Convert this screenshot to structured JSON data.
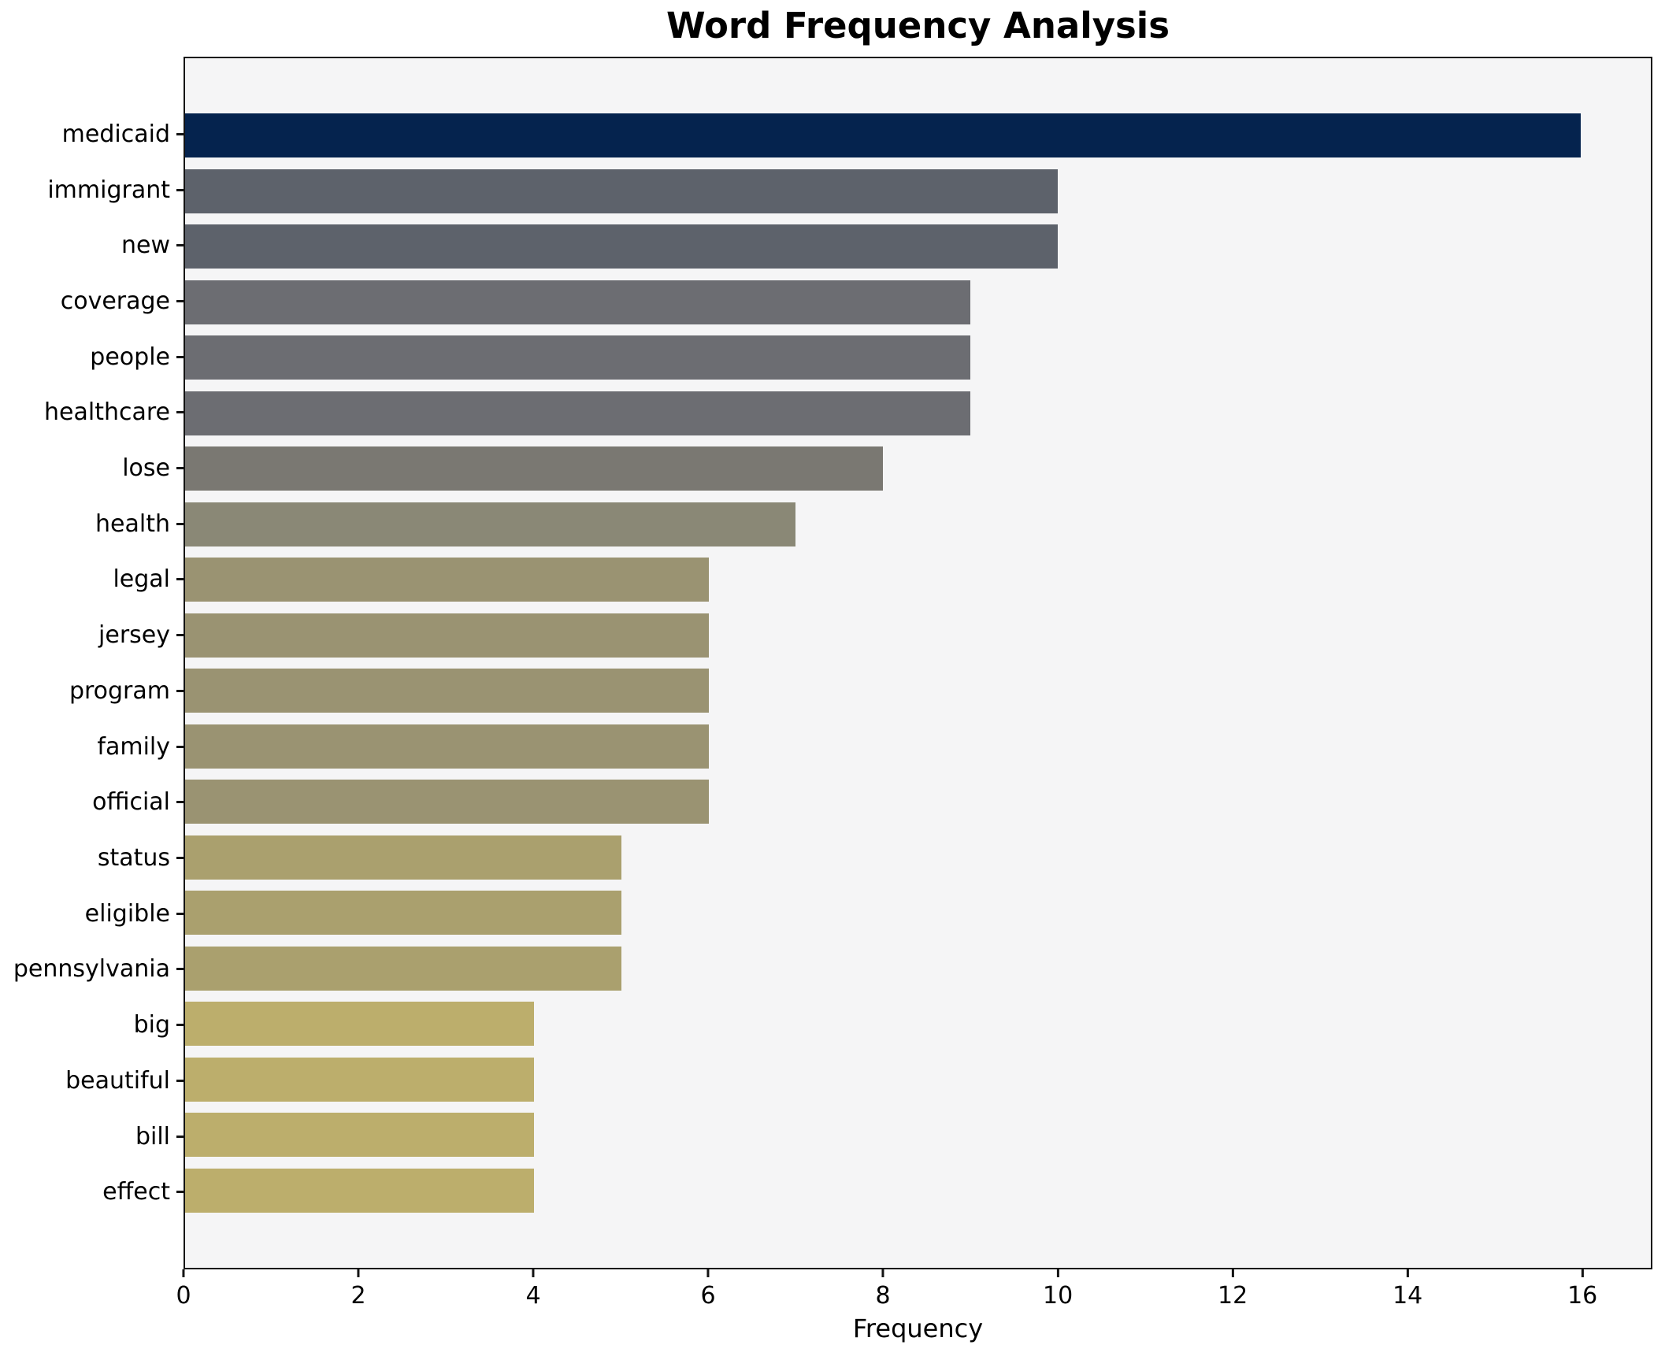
{
  "chart_data": {
    "type": "bar",
    "orientation": "horizontal",
    "title": "Word Frequency Analysis",
    "xlabel": "Frequency",
    "ylabel": "",
    "categories": [
      "medicaid",
      "immigrant",
      "new",
      "coverage",
      "people",
      "healthcare",
      "lose",
      "health",
      "legal",
      "jersey",
      "program",
      "family",
      "official",
      "status",
      "eligible",
      "pennsylvania",
      "big",
      "beautiful",
      "bill",
      "effect"
    ],
    "values": [
      16,
      10,
      10,
      9,
      9,
      9,
      8,
      7,
      6,
      6,
      6,
      6,
      6,
      5,
      5,
      5,
      4,
      4,
      4,
      4
    ],
    "bar_colors": [
      "#05234e",
      "#5d626b",
      "#5d626b",
      "#6c6d72",
      "#6c6d72",
      "#6c6d72",
      "#7a7872",
      "#8a8876",
      "#9a9372",
      "#9a9372",
      "#9a9372",
      "#9a9372",
      "#9a9372",
      "#aaa06e",
      "#aaa06e",
      "#aaa06e",
      "#bcae6c",
      "#bcae6c",
      "#bcae6c",
      "#bcae6c"
    ],
    "xlim": [
      0,
      16.8
    ],
    "xticks": [
      0,
      2,
      4,
      6,
      8,
      10,
      12,
      14,
      16
    ],
    "grid": false,
    "legend": "none",
    "plot_background": "#f5f5f6",
    "figure_background": "#ffffff",
    "spine_color": "#141414",
    "text_color": "#000000"
  }
}
